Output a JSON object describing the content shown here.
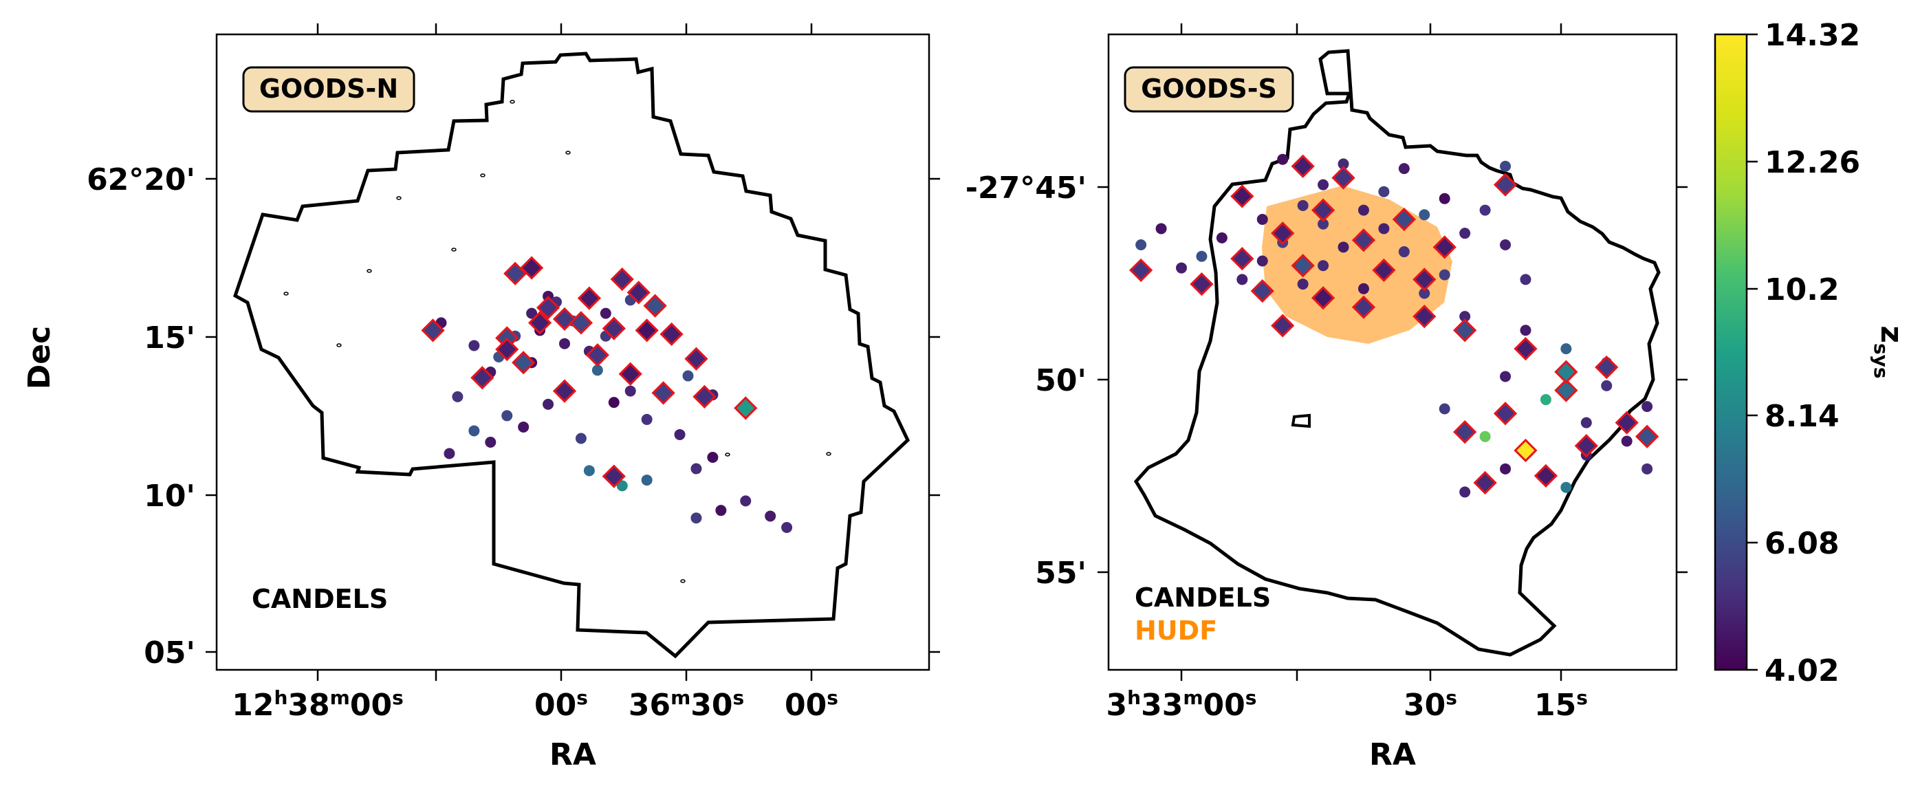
{
  "chart_data": [
    {
      "type": "scatter",
      "field_label": "GOODS-N",
      "xlabel": "RA",
      "ylabel": "Dec",
      "x_ticks": [
        {
          "h": "12",
          "m": "38",
          "s": "00",
          "full": true
        },
        {
          "s": "00"
        },
        {
          "m": "36",
          "s": "30",
          "partial": true
        },
        {
          "s": "00"
        }
      ],
      "y_ticks": [
        "62°20'",
        "15'",
        "10'",
        "05'"
      ],
      "survey_labels": [
        {
          "text": "CANDELS",
          "color": "#000000"
        }
      ],
      "colormap": "viridis",
      "series": [
        {
          "marker": "circle",
          "points": [
            [
              189.22,
              62.271
            ],
            [
              189.21,
              62.268
            ],
            [
              189.24,
              62.262
            ],
            [
              189.19,
              62.258
            ],
            [
              189.23,
              62.253
            ],
            [
              189.26,
              62.25
            ],
            [
              189.2,
              62.246
            ],
            [
              189.15,
              62.25
            ],
            [
              189.17,
              62.242
            ],
            [
              189.28,
              62.239
            ],
            [
              189.24,
              62.236
            ],
            [
              189.31,
              62.245
            ],
            [
              189.29,
              62.231
            ],
            [
              189.16,
              62.232
            ],
            [
              189.12,
              62.221
            ],
            [
              189.14,
              62.215
            ],
            [
              189.33,
              62.218
            ],
            [
              189.27,
              62.208
            ],
            [
              189.22,
              62.214
            ],
            [
              189.1,
              62.206
            ],
            [
              189.25,
              62.202
            ],
            [
              189.18,
              62.196
            ],
            [
              189.06,
              62.198
            ],
            [
              189.02,
              62.186
            ],
            [
              189.04,
              62.18
            ],
            [
              189.29,
              62.194
            ],
            [
              189.31,
              62.2
            ],
            [
              189.34,
              62.188
            ],
            [
              188.98,
              62.163
            ],
            [
              189.01,
              62.158
            ],
            [
              189.04,
              62.154
            ],
            [
              188.95,
              62.155
            ],
            [
              188.93,
              62.149
            ],
            [
              189.17,
              62.179
            ],
            [
              189.13,
              62.171
            ],
            [
              189.1,
              62.174
            ],
            [
              189.35,
              62.257
            ],
            [
              189.12,
              62.269
            ],
            [
              189.15,
              62.262
            ],
            [
              189.02,
              62.219
            ],
            [
              189.05,
              62.229
            ]
          ],
          "z": [
            4.5,
            5.2,
            4.8,
            6.1,
            4.3,
            5.9,
            4.7,
            5.5,
            4.9,
            6.3,
            4.4,
            5.1,
            4.6,
            6.8,
            5.0,
            4.2,
            5.4,
            6.0,
            4.8,
            5.3,
            4.5,
            5.7,
            4.9,
            4.3,
            5.2,
            4.6,
            6.4,
            4.8,
            5.0,
            4.4,
            5.6,
            4.7,
            5.1,
            7.2,
            8.3,
            6.9,
            4.5,
            5.8,
            4.6,
            4.9,
            6.1
          ]
        },
        {
          "marker": "diamond",
          "points": [
            [
              189.13,
              62.28
            ],
            [
              189.24,
              62.286
            ],
            [
              189.26,
              62.283
            ],
            [
              189.11,
              62.273
            ],
            [
              189.09,
              62.266
            ],
            [
              189.22,
              62.265
            ],
            [
              189.17,
              62.27
            ],
            [
              189.2,
              62.259
            ],
            [
              189.23,
              62.257
            ],
            [
              189.27,
              62.249
            ],
            [
              189.14,
              62.254
            ],
            [
              189.1,
              62.253
            ],
            [
              189.18,
              62.257
            ],
            [
              189.07,
              62.251
            ],
            [
              189.04,
              62.238
            ],
            [
              189.25,
              62.236
            ],
            [
              189.16,
              62.24
            ],
            [
              189.12,
              62.23
            ],
            [
              189.03,
              62.218
            ],
            [
              189.08,
              62.22
            ],
            [
              189.2,
              62.221
            ],
            [
              188.98,
              62.212
            ],
            [
              189.3,
              62.228
            ],
            [
              189.27,
              62.243
            ],
            [
              189.36,
              62.253
            ],
            [
              189.14,
              62.176
            ]
          ],
          "z": [
            5.1,
            4.6,
            5.8,
            4.9,
            6.2,
            5.3,
            4.7,
            5.5,
            4.8,
            6.0,
            5.2,
            4.5,
            5.9,
            4.8,
            5.0,
            6.3,
            5.4,
            4.6,
            5.2,
            5.7,
            4.9,
            8.9,
            5.1,
            4.8,
            5.6,
            5.0
          ]
        }
      ]
    },
    {
      "type": "scatter",
      "field_label": "GOODS-S",
      "xlabel": "RA",
      "ylabel": "",
      "x_ticks": [
        {
          "h": "3",
          "m": "33",
          "s": "00",
          "full": true
        },
        {
          "s": "30"
        },
        {
          "s": "15"
        }
      ],
      "y_ticks": [
        "-27°45'",
        "50'",
        "55'"
      ],
      "survey_labels": [
        {
          "text": "CANDELS",
          "color": "#000000"
        },
        {
          "text": "HUDF",
          "color": "#ff8c00"
        }
      ],
      "colormap": "viridis",
      "series": [
        {
          "marker": "circle",
          "points": [
            [
              53.2,
              -27.738
            ],
            [
              53.17,
              -27.74
            ],
            [
              53.14,
              -27.742
            ],
            [
              53.09,
              -27.741
            ],
            [
              53.18,
              -27.749
            ],
            [
              53.15,
              -27.752
            ],
            [
              53.12,
              -27.755
            ],
            [
              53.19,
              -27.758
            ],
            [
              53.16,
              -27.76
            ],
            [
              53.13,
              -27.762
            ],
            [
              53.21,
              -27.764
            ],
            [
              53.18,
              -27.766
            ],
            [
              53.15,
              -27.768
            ],
            [
              53.11,
              -27.77
            ],
            [
              53.23,
              -27.772
            ],
            [
              53.2,
              -27.774
            ],
            [
              53.17,
              -27.776
            ],
            [
              53.14,
              -27.778
            ],
            [
              53.24,
              -27.78
            ],
            [
              53.21,
              -27.782
            ],
            [
              53.18,
              -27.784
            ],
            [
              53.15,
              -27.786
            ],
            [
              53.12,
              -27.788
            ],
            [
              53.22,
              -27.79
            ],
            [
              53.19,
              -27.792
            ],
            [
              53.16,
              -27.794
            ],
            [
              53.13,
              -27.796
            ],
            [
              53.25,
              -27.785
            ],
            [
              53.27,
              -27.775
            ],
            [
              53.26,
              -27.768
            ],
            [
              53.1,
              -27.76
            ],
            [
              53.09,
              -27.775
            ],
            [
              53.08,
              -27.79
            ],
            [
              53.11,
              -27.806
            ],
            [
              53.08,
              -27.812
            ],
            [
              53.06,
              -27.82
            ],
            [
              53.04,
              -27.826
            ],
            [
              53.09,
              -27.832
            ],
            [
              53.07,
              -27.842
            ],
            [
              53.05,
              -27.852
            ],
            [
              53.03,
              -27.86
            ],
            [
              53.1,
              -27.858
            ],
            [
              53.04,
              -27.836
            ],
            [
              53.02,
              -27.845
            ],
            [
              53.12,
              -27.846
            ],
            [
              53.09,
              -27.872
            ],
            [
              53.06,
              -27.88
            ],
            [
              53.11,
              -27.882
            ],
            [
              53.05,
              -27.866
            ],
            [
              53.02,
              -27.872
            ]
          ],
          "z": [
            4.4,
            5.1,
            4.7,
            6.0,
            4.9,
            5.6,
            4.3,
            5.2,
            4.8,
            6.5,
            4.6,
            5.4,
            4.9,
            5.0,
            4.5,
            5.8,
            4.7,
            5.3,
            6.2,
            4.8,
            5.1,
            4.4,
            5.7,
            4.9,
            5.0,
            4.6,
            5.5,
            4.8,
            6.1,
            4.5,
            5.3,
            4.9,
            5.2,
            5.0,
            4.7,
            6.8,
            5.4,
            4.8,
            9.6,
            5.1,
            4.6,
            10.9,
            5.3,
            4.9,
            5.6,
            4.5,
            7.7,
            5.0,
            4.8,
            5.2
          ]
        },
        {
          "marker": "diamond",
          "points": [
            [
              53.19,
              -27.741
            ],
            [
              53.17,
              -27.746
            ],
            [
              53.09,
              -27.749
            ],
            [
              53.22,
              -27.754
            ],
            [
              53.18,
              -27.76
            ],
            [
              53.14,
              -27.764
            ],
            [
              53.2,
              -27.77
            ],
            [
              53.16,
              -27.773
            ],
            [
              53.12,
              -27.776
            ],
            [
              53.22,
              -27.781
            ],
            [
              53.19,
              -27.784
            ],
            [
              53.15,
              -27.786
            ],
            [
              53.24,
              -27.792
            ],
            [
              53.21,
              -27.795
            ],
            [
              53.18,
              -27.798
            ],
            [
              53.16,
              -27.802
            ],
            [
              53.13,
              -27.806
            ],
            [
              53.11,
              -27.812
            ],
            [
              53.2,
              -27.81
            ],
            [
              53.08,
              -27.82
            ],
            [
              53.04,
              -27.828
            ],
            [
              53.06,
              -27.838
            ],
            [
              53.03,
              -27.852
            ],
            [
              53.09,
              -27.848
            ],
            [
              53.05,
              -27.862
            ],
            [
              53.08,
              -27.864
            ],
            [
              53.11,
              -27.856
            ],
            [
              53.02,
              -27.858
            ],
            [
              53.07,
              -27.875
            ],
            [
              53.1,
              -27.878
            ],
            [
              53.06,
              -27.83
            ],
            [
              53.13,
              -27.79
            ],
            [
              53.27,
              -27.786
            ]
          ],
          "z": [
            4.8,
            5.3,
            5.6,
            4.6,
            5.2,
            6.0,
            4.9,
            5.5,
            4.7,
            5.1,
            6.3,
            4.8,
            5.0,
            5.7,
            4.6,
            5.4,
            4.9,
            6.1,
            5.2,
            4.8,
            5.5,
            7.1,
            4.9,
            5.3,
            5.0,
            14.3,
            5.6,
            6.2,
            4.7,
            5.1,
            8.0,
            4.9,
            5.4
          ]
        }
      ]
    }
  ],
  "colorbar": {
    "label": "z_sys",
    "tick_labels": [
      "14.32",
      "12.26",
      "10.2",
      "8.14",
      "6.08",
      "4.02"
    ],
    "vmin": 4.02,
    "vmax": 14.32
  },
  "colors": {
    "marker_edge": "#e8141a",
    "hudf": "#ff8c00",
    "label_box": "#f5deb3"
  }
}
